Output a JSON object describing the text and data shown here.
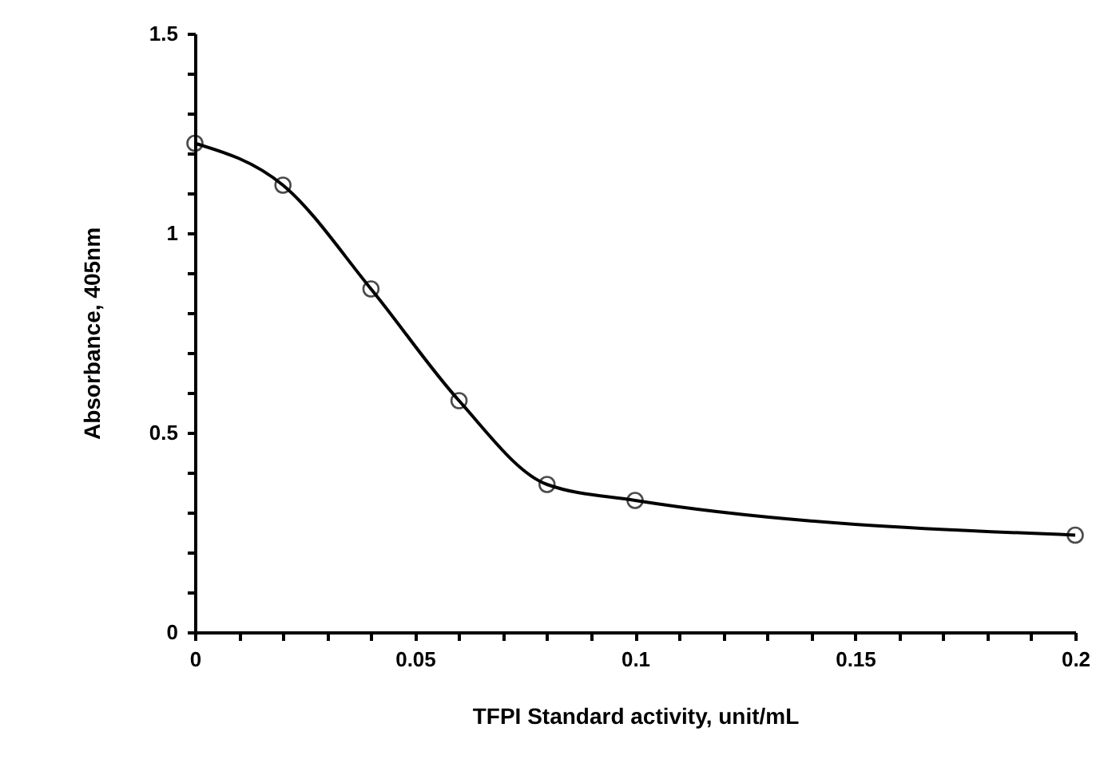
{
  "chart_data": {
    "type": "line",
    "xlabel": "TFPI Standard activity, unit/mL",
    "ylabel": "Absorbance,  405nm",
    "x": [
      0,
      0.02,
      0.04,
      0.06,
      0.08,
      0.1,
      0.2
    ],
    "series": [
      {
        "color": "#000000",
        "values": [
          1.225,
          1.12,
          0.86,
          0.58,
          0.37,
          0.33,
          0.243
        ]
      }
    ],
    "xlim": [
      0,
      0.2
    ],
    "ylim": [
      0,
      1.5
    ],
    "xticks": [
      0,
      {
        "value": 0.01,
        "label": null
      },
      {
        "value": 0.02,
        "label": null
      },
      {
        "value": 0.03,
        "label": null
      },
      {
        "value": 0.04,
        "label": null
      },
      0.05,
      {
        "value": 0.06,
        "label": null
      },
      {
        "value": 0.07,
        "label": null
      },
      {
        "value": 0.08,
        "label": null
      },
      {
        "value": 0.09,
        "label": null
      },
      0.1,
      {
        "value": 0.11,
        "label": null
      },
      {
        "value": 0.12,
        "label": null
      },
      {
        "value": 0.13,
        "label": null
      },
      {
        "value": 0.14,
        "label": null
      },
      0.15,
      {
        "value": 0.16,
        "label": null
      },
      {
        "value": 0.17,
        "label": null
      },
      {
        "value": 0.18,
        "label": null
      },
      {
        "value": 0.19,
        "label": null
      },
      0.2
    ],
    "yticks": [
      0,
      {
        "value": 0.1,
        "label": null
      },
      {
        "value": 0.2,
        "label": null
      },
      {
        "value": 0.3,
        "label": null
      },
      {
        "value": 0.4,
        "label": null
      },
      0.5,
      {
        "value": 0.6,
        "label": null
      },
      {
        "value": 0.7,
        "label": null
      },
      {
        "value": 0.8,
        "label": null
      },
      {
        "value": 0.9,
        "label": null
      },
      1,
      {
        "value": 1.1,
        "label": null
      },
      {
        "value": 1.2,
        "label": null
      },
      {
        "value": 1.3,
        "label": null
      },
      {
        "value": 1.4,
        "label": null
      },
      1.5
    ],
    "grid": false,
    "marker": "circle",
    "line_style": "solid"
  }
}
